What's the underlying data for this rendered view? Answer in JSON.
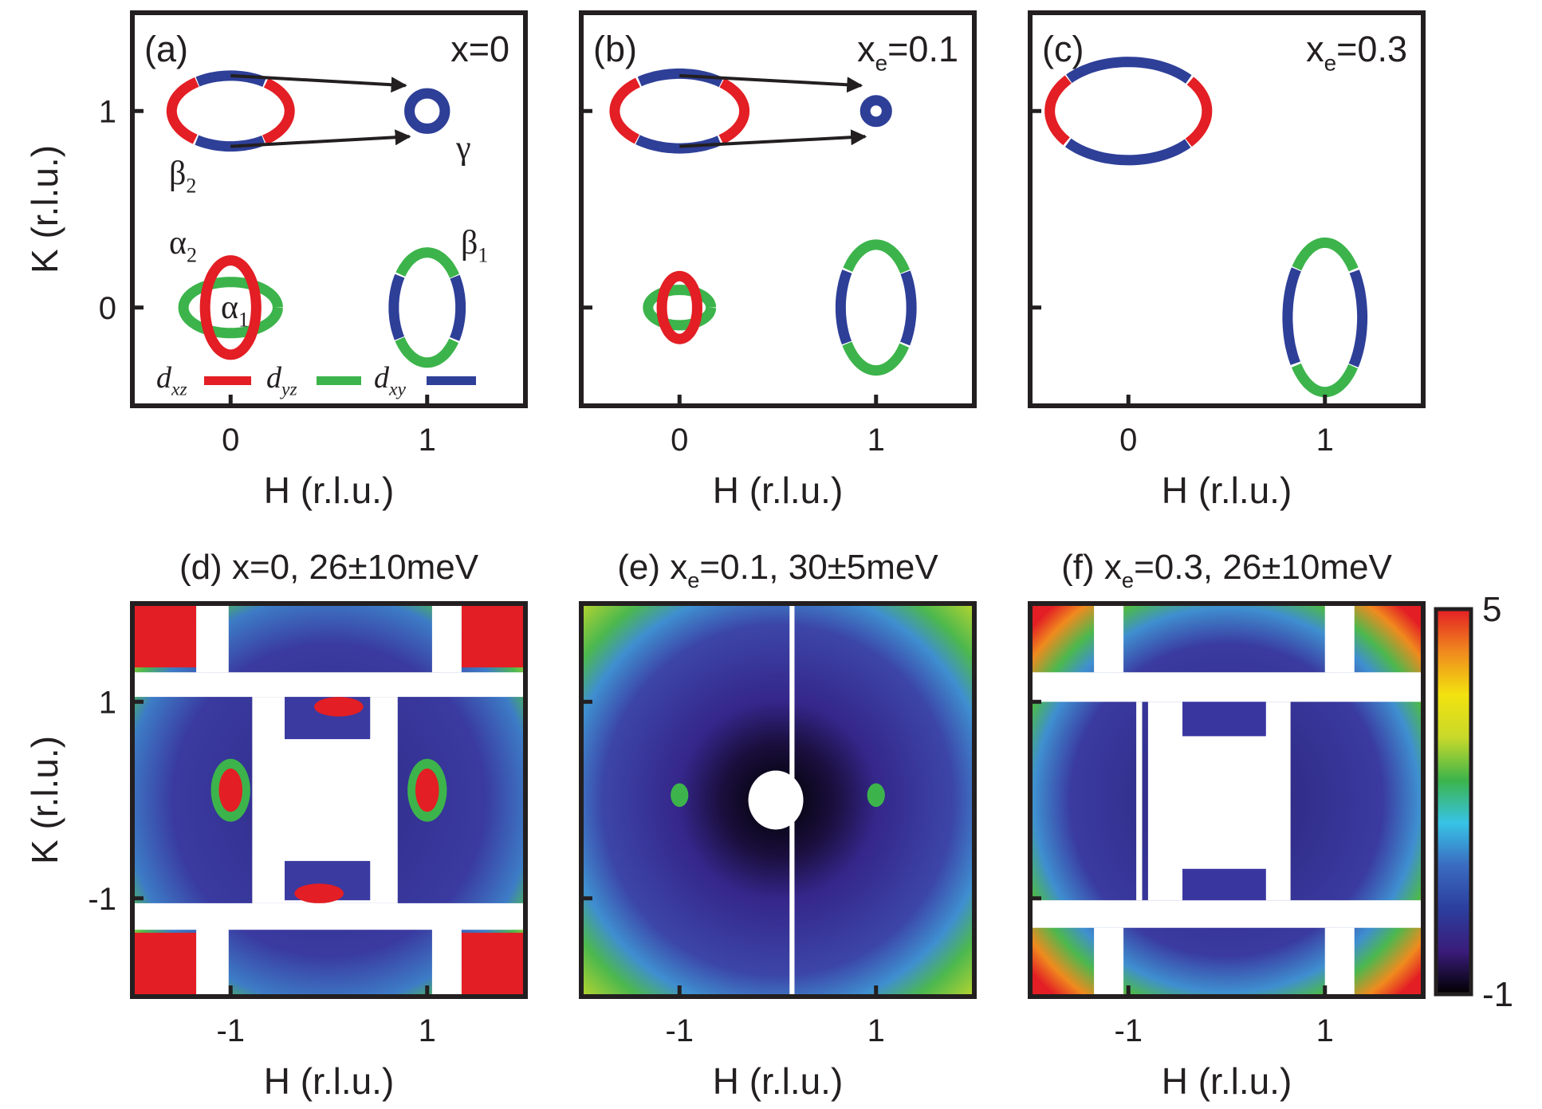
{
  "panels": [
    {
      "type": "fermi-surface",
      "label": "(a)",
      "annotation": [
        "x=0"
      ],
      "xlabel": "H (r.l.u.)",
      "ylabel": "K (r.l.u.)",
      "show_ytick_labels": true,
      "xlim": [
        -0.5,
        1.5
      ],
      "ylim": [
        -0.5,
        1.5
      ],
      "xticks": [
        0,
        1
      ],
      "yticks": [
        0,
        1
      ],
      "bands": [
        [
          "β",
          "2"
        ],
        [
          "γ"
        ],
        [
          "α",
          "2"
        ],
        [
          "α",
          "1"
        ],
        [
          "β",
          "1"
        ]
      ],
      "legend": [
        {
          "name": [
            "d",
            "xz"
          ],
          "color": "#e31e24"
        },
        {
          "name": [
            "d",
            "yz"
          ],
          "color": "#3cb44b"
        },
        {
          "name": [
            "d",
            "xy"
          ],
          "color": "#2e3f98"
        }
      ]
    },
    {
      "type": "fermi-surface",
      "label": "(b)",
      "annotation": [
        "x",
        "e",
        "=0.1"
      ],
      "xlabel": "H (r.l.u.)",
      "show_ytick_labels": false,
      "xlim": [
        -0.5,
        1.5
      ],
      "ylim": [
        -0.5,
        1.5
      ],
      "xticks": [
        0,
        1
      ],
      "yticks": [
        0,
        1
      ]
    },
    {
      "type": "fermi-surface",
      "label": "(c)",
      "annotation": [
        "x",
        "e",
        "=0.3"
      ],
      "xlabel": "H (r.l.u.)",
      "show_ytick_labels": false,
      "xlim": [
        -0.5,
        1.5
      ],
      "ylim": [
        -0.5,
        1.5
      ],
      "xticks": [
        0,
        1
      ],
      "yticks": [
        0,
        1
      ]
    },
    {
      "type": "heatmap",
      "title": [
        "(d) x=0,  26±10meV"
      ],
      "xlabel": "H (r.l.u.)",
      "ylabel": "K (r.l.u.)",
      "show_ytick_labels": true,
      "xlim": [
        -2,
        2
      ],
      "ylim": [
        -2,
        2
      ],
      "xticks": [
        -1,
        1
      ],
      "yticks": [
        -1,
        1
      ]
    },
    {
      "type": "heatmap",
      "title": [
        "(e) x",
        "e",
        "=0.1, 30±5meV"
      ],
      "xlabel": "H (r.l.u.)",
      "show_ytick_labels": false,
      "xlim": [
        -2,
        2
      ],
      "ylim": [
        -2,
        2
      ],
      "xticks": [
        -1,
        1
      ],
      "yticks": [
        -1,
        1
      ]
    },
    {
      "type": "heatmap",
      "title": [
        "(f) x",
        "e",
        "=0.3, 26±10meV"
      ],
      "xlabel": "H (r.l.u.)",
      "show_ytick_labels": false,
      "xlim": [
        -2,
        2
      ],
      "ylim": [
        -2,
        2
      ],
      "xticks": [
        -1,
        1
      ],
      "yticks": [
        -1,
        1
      ]
    }
  ],
  "colorbar": {
    "lim": [
      -1,
      5
    ],
    "ticks": [
      5,
      -1
    ],
    "colors": [
      "#000000",
      "#3a1c7a",
      "#2c3e9e",
      "#3a6bc0",
      "#37c3e6",
      "#3cb44b",
      "#c8d92a",
      "#f2e20f",
      "#f08a1e",
      "#e31e24"
    ]
  }
}
